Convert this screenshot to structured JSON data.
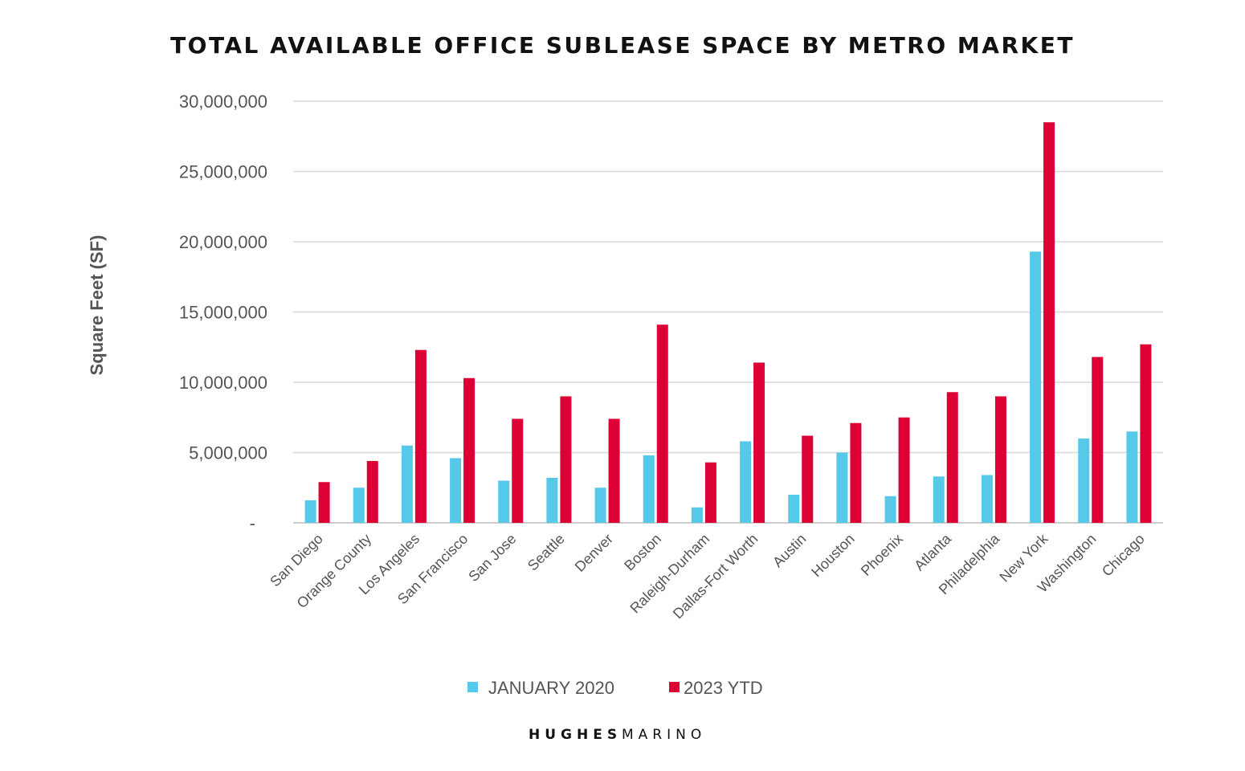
{
  "chart_data": {
    "type": "bar",
    "title": "TOTAL AVAILABLE OFFICE SUBLEASE SPACE BY METRO MARKET",
    "xlabel": "",
    "ylabel": "Square Feet (SF)",
    "ylim": [
      0,
      30000000
    ],
    "yticks": [
      0,
      5000000,
      10000000,
      15000000,
      20000000,
      25000000,
      30000000
    ],
    "ytick_labels": [
      "-",
      "5,000,000",
      "10,000,000",
      "15,000,000",
      "20,000,000",
      "25,000,000",
      "30,000,000"
    ],
    "grid": true,
    "legend_position": "bottom",
    "categories": [
      "San Diego",
      "Orange County",
      "Los Angeles",
      "San Francisco",
      "San Jose",
      "Seattle",
      "Denver",
      "Boston",
      "Raleigh-Durham",
      "Dallas-Fort Worth",
      "Austin",
      "Houston",
      "Phoenix",
      "Atlanta",
      "Philadelphia",
      "New York",
      "Washington",
      "Chicago"
    ],
    "series": [
      {
        "name": "JANUARY 2020",
        "color": "#56c8e8",
        "values": [
          1600000,
          2500000,
          5500000,
          4600000,
          3000000,
          3200000,
          2500000,
          4800000,
          1100000,
          5800000,
          2000000,
          5000000,
          1900000,
          3300000,
          3400000,
          19300000,
          6000000,
          6500000
        ]
      },
      {
        "name": "2023 YTD",
        "color": "#dc0035",
        "values": [
          2900000,
          4400000,
          12300000,
          10300000,
          7400000,
          9000000,
          7400000,
          14100000,
          4300000,
          11400000,
          6200000,
          7100000,
          7500000,
          9300000,
          9000000,
          28500000,
          11800000,
          12700000
        ]
      }
    ]
  },
  "branding": {
    "logo_text_bold": "HUGHES",
    "logo_text_light": "MARINO"
  }
}
